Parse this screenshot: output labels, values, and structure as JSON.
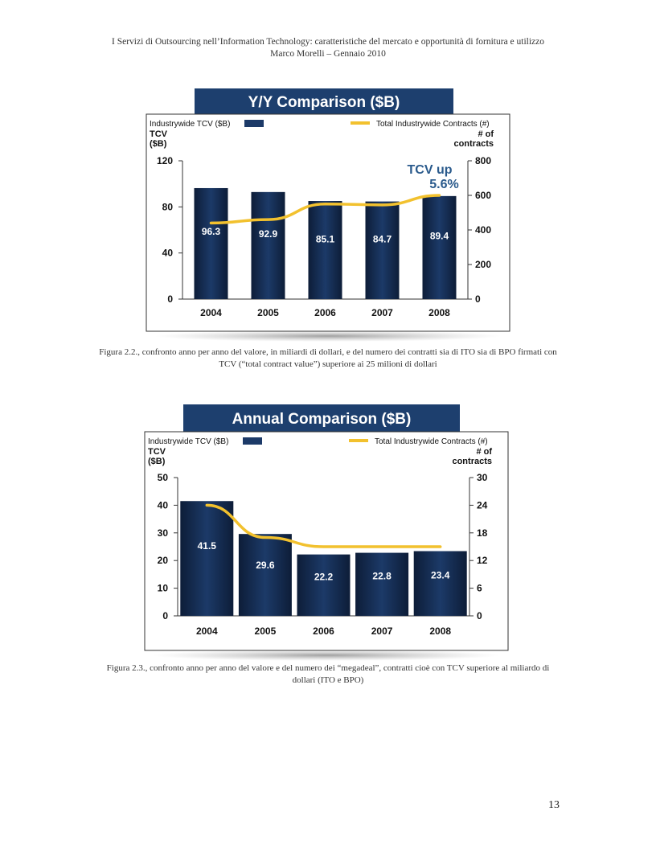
{
  "header": {
    "line1": "I Servizi di Outsourcing nell’Information Technology: caratteristiche del mercato e opportunità di fornitura e utilizzo",
    "line2": "Marco Morelli – Gennaio 2010"
  },
  "colors": {
    "bar": "#1c3a68",
    "bar_dark": "#0d1d38",
    "line": "#f2c12e",
    "title_bg": "#1d3f6e",
    "annotation": "#2a5a8c"
  },
  "chart_data": [
    {
      "type": "bar",
      "title": "Y/Y Comparison ($B)",
      "legend_bar": "Industrywide TCV ($B)",
      "legend_line": "Total Industrywide Contracts (#)",
      "ylabel_left": [
        "TCV",
        "($B)"
      ],
      "ylabel_right": [
        "# of",
        "contracts"
      ],
      "categories": [
        "2004",
        "2005",
        "2006",
        "2007",
        "2008"
      ],
      "values": [
        96.3,
        92.9,
        85.1,
        84.7,
        89.4
      ],
      "value_labels": [
        "96.3",
        "92.9",
        "85.1",
        "84.7",
        "89.4"
      ],
      "ylim": [
        0,
        120
      ],
      "yticks": [
        0,
        40,
        80,
        120
      ],
      "ylim_right": [
        0,
        800
      ],
      "yticks_right": [
        0,
        200,
        400,
        600,
        800
      ],
      "line_values": [
        440,
        460,
        550,
        545,
        600
      ],
      "annotation": [
        "TCV up",
        "5.6%"
      ]
    },
    {
      "type": "bar",
      "title": "Annual Comparison ($B)",
      "legend_bar": "Industrywide TCV ($B)",
      "legend_line": "Total Industrywide Contracts (#)",
      "ylabel_left": [
        "TCV",
        "($B)"
      ],
      "ylabel_right": [
        "# of",
        "contracts"
      ],
      "categories": [
        "2004",
        "2005",
        "2006",
        "2007",
        "2008"
      ],
      "values": [
        41.5,
        29.6,
        22.2,
        22.8,
        23.4
      ],
      "value_labels": [
        "41.5",
        "29.6",
        "22.2",
        "22.8",
        "23.4"
      ],
      "ylim": [
        0,
        50
      ],
      "yticks": [
        0,
        10,
        20,
        30,
        40,
        50
      ],
      "ylim_right": [
        0,
        30
      ],
      "yticks_right": [
        0,
        6,
        12,
        18,
        24,
        30
      ],
      "line_values": [
        24,
        17,
        15,
        15,
        15
      ],
      "annotation": []
    }
  ],
  "captions": {
    "fig1": "Figura 2.2., confronto anno per anno del valore, in miliardi di dollari, e del numero dei contratti sia di ITO sia di BPO firmati con TCV (“total contract value”) superiore ai 25 milioni di dollari",
    "fig2": "Figura 2.3., confronto anno per anno del valore e del numero dei “megadeal”, contratti cioè con TCV superiore al miliardo di dollari (ITO e BPO)"
  },
  "page_number": "13"
}
